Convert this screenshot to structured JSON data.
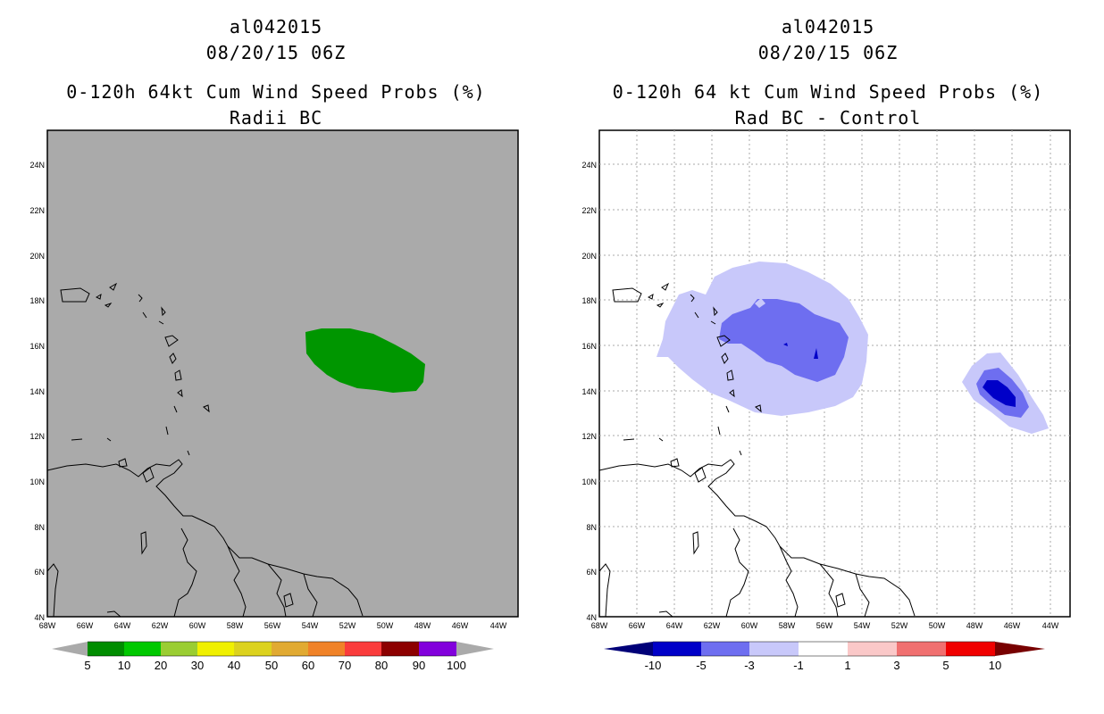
{
  "left": {
    "storm_id": "al042015",
    "datetime": "08/20/15 06Z",
    "product": "0-120h 64kt Cum Wind Speed Probs (%)",
    "subtitle": "Radii BC",
    "legend": {
      "labels": [
        "5",
        "10",
        "20",
        "30",
        "40",
        "50",
        "60",
        "70",
        "80",
        "90",
        "100"
      ],
      "colors": [
        "#008c00",
        "#00c800",
        "#9acd32",
        "#f0f000",
        "#dcd21e",
        "#e1aa32",
        "#f08228",
        "#fa3c3c",
        "#8c0000",
        "#8200dc"
      ]
    }
  },
  "right": {
    "storm_id": "al042015",
    "datetime": "08/20/15 06Z",
    "product": "0-120h 64 kt Cum Wind Speed Probs (%)",
    "subtitle": "Rad BC - Control",
    "legend": {
      "labels": [
        "-10",
        "-5",
        "-3",
        "-1",
        "1",
        "3",
        "5",
        "10"
      ],
      "colors": [
        "#0000c8",
        "#6e6ef0",
        "#c8c8fa",
        "#ffffff",
        "#fac8c8",
        "#f07070",
        "#f00000"
      ],
      "low_color": "#000078",
      "high_color": "#780000"
    }
  },
  "axes": {
    "lat_labels": [
      "24N",
      "22N",
      "20N",
      "18N",
      "16N",
      "14N",
      "12N",
      "10N",
      "8N",
      "6N",
      "4N"
    ],
    "lon_labels": [
      "68W",
      "66W",
      "64W",
      "62W",
      "60W",
      "58W",
      "56W",
      "54W",
      "52W",
      "50W",
      "48W",
      "46W",
      "44W"
    ]
  },
  "colors": {
    "map_gray": "#aaaaaa",
    "prob_green": "#009600",
    "diff_light": "#c8c8fa",
    "diff_mid": "#6e6ef0",
    "diff_dark": "#0000c8"
  }
}
